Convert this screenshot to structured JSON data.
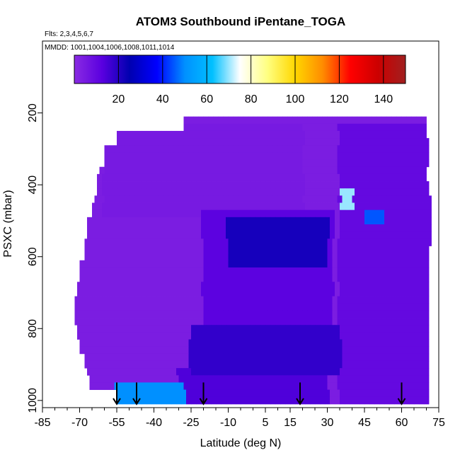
{
  "chart_data": {
    "type": "heatmap",
    "title": "ATOM3 Southbound iPentane_TOGA",
    "flights_label": "Flts: 2,3,4,5,6,7",
    "dates_label": "MMDD: 1001,1004,1006,1008,1011,1014",
    "xlabel": "Latitude (deg N)",
    "ylabel": "PSXC (mbar)",
    "x_ticks": [
      -85,
      -70,
      -55,
      -40,
      -25,
      -10,
      5,
      15,
      30,
      45,
      60,
      75
    ],
    "x_tick_labels": [
      "-85",
      "-70",
      "-55",
      "-40",
      "-25",
      "-10",
      "5",
      "15",
      "30",
      "45",
      "60",
      "75"
    ],
    "xlim": [
      -85,
      75
    ],
    "y_ticks": [
      200,
      400,
      600,
      800,
      1000
    ],
    "y_tick_labels": [
      "200",
      "400",
      "600",
      "800",
      "1000"
    ],
    "ylim": [
      1020,
      0
    ],
    "colorbar": {
      "range": [
        0,
        150
      ],
      "ticks": [
        20,
        40,
        60,
        80,
        100,
        120,
        140
      ],
      "tick_labels": [
        "20",
        "40",
        "60",
        "80",
        "100",
        "120",
        "140"
      ],
      "colors": [
        "#8a2be2",
        "#5a00e0",
        "#0000b0",
        "#0000ff",
        "#0090ff",
        "#00c0ff",
        "#ffffff",
        "#ffff80",
        "#ffd700",
        "#ff8c00",
        "#ff0000",
        "#cc0000",
        "#a02020"
      ]
    },
    "profile_arrows_lat": [
      -55,
      -47,
      -20,
      19,
      60
    ],
    "pressure_levels": [
      220,
      240,
      260,
      280,
      300,
      320,
      340,
      360,
      380,
      400,
      420,
      440,
      460,
      480,
      500,
      520,
      540,
      560,
      580,
      600,
      620,
      640,
      660,
      680,
      700,
      720,
      740,
      760,
      780,
      800,
      820,
      840,
      860,
      880,
      900,
      920,
      940,
      960,
      980,
      1000
    ],
    "southern_edge_lat": [
      -28,
      -28,
      -55,
      -55,
      -60,
      -60,
      -60,
      -62,
      -63,
      -63,
      -63,
      -64,
      -65,
      -65,
      -67,
      -67,
      -67,
      -68,
      -68,
      -68,
      -70,
      -70,
      -70,
      -71,
      -71,
      -72,
      -72,
      -72,
      -72,
      -71,
      -71,
      -70,
      -70,
      -68,
      -68,
      -67,
      -66,
      -66,
      -55,
      -55
    ],
    "northern_edge_lat": [
      70,
      70,
      70,
      71,
      71,
      71,
      71,
      70,
      70,
      71,
      71,
      72,
      72,
      72,
      72,
      72,
      72,
      72,
      71,
      71,
      71,
      71,
      71,
      71,
      71,
      71,
      71,
      71,
      71,
      71,
      71,
      71,
      71,
      71,
      71,
      71,
      71,
      71,
      71,
      71
    ],
    "field_regions": [
      {
        "lat": [
          -60,
          20
        ],
        "p": [
          240,
          480
        ],
        "value": 5
      },
      {
        "lat": [
          -20,
          32
        ],
        "p": [
          480,
          780
        ],
        "value": 12
      },
      {
        "lat": [
          -10,
          30
        ],
        "p": [
          500,
          620
        ],
        "value": 22
      },
      {
        "lat": [
          -25,
          35
        ],
        "p": [
          800,
          920
        ],
        "value": 18
      },
      {
        "lat": [
          -30,
          30
        ],
        "p": [
          920,
          1010
        ],
        "value": 14
      },
      {
        "lat": [
          35,
          72
        ],
        "p": [
          240,
          1010
        ],
        "value": 10
      },
      {
        "lat": [
          36,
          40
        ],
        "p": [
          420,
          470
        ],
        "value": 70
      },
      {
        "lat": [
          45,
          52
        ],
        "p": [
          470,
          500
        ],
        "value": 45
      },
      {
        "lat": [
          -55,
          -28
        ],
        "p": [
          960,
          1010
        ],
        "value": 50
      }
    ]
  }
}
